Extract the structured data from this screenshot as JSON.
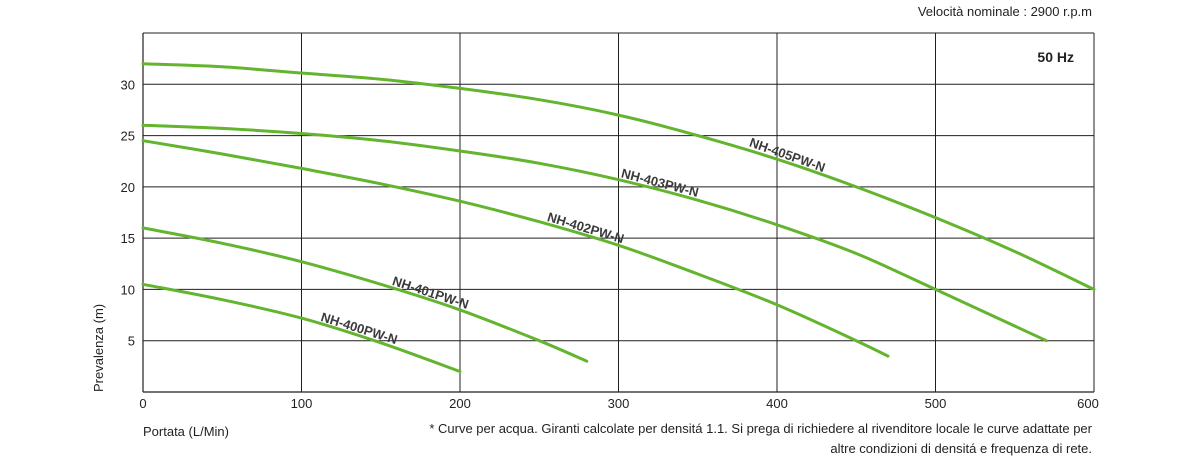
{
  "header": {
    "speed": "Velocità nominale : 2900 r.p.m",
    "frequency": "50 Hz"
  },
  "footnote": {
    "line1": "* Curve per acqua. Giranti calcolate per densitá 1.1. Si prega di richiedere al rivenditore locale le curve adattate per",
    "line2": "altre condizioni di densitá e frequenza di rete."
  },
  "chart_data": {
    "type": "line",
    "title": "",
    "xlabel": "Portata (L/Min)",
    "ylabel": "Prevalenza (m)",
    "xlim": [
      0,
      600
    ],
    "ylim": [
      0,
      35
    ],
    "xticks": [
      0,
      100,
      200,
      300,
      400,
      500,
      600
    ],
    "yticks": [
      5,
      10,
      15,
      20,
      25,
      30
    ],
    "grid": true,
    "line_color": "#63b42e",
    "series": [
      {
        "name": "NH-400PW-N",
        "x": [
          0,
          50,
          100,
          150,
          200
        ],
        "y": [
          10.5,
          9.0,
          7.2,
          4.8,
          2.0
        ]
      },
      {
        "name": "NH-401PW-N",
        "x": [
          0,
          50,
          100,
          150,
          200,
          250,
          280
        ],
        "y": [
          16.0,
          14.5,
          12.7,
          10.5,
          8.0,
          5.0,
          3.0
        ]
      },
      {
        "name": "NH-402PW-N",
        "x": [
          0,
          50,
          100,
          150,
          200,
          250,
          300,
          350,
          400,
          450,
          470
        ],
        "y": [
          24.5,
          23.2,
          21.8,
          20.3,
          18.6,
          16.6,
          14.3,
          11.5,
          8.5,
          5.0,
          3.5
        ]
      },
      {
        "name": "NH-403PW-N",
        "x": [
          0,
          50,
          100,
          150,
          200,
          250,
          300,
          350,
          400,
          450,
          500,
          570
        ],
        "y": [
          26.0,
          25.7,
          25.2,
          24.5,
          23.5,
          22.3,
          20.7,
          18.7,
          16.3,
          13.5,
          10.0,
          5.0
        ]
      },
      {
        "name": "NH-405PW-N",
        "x": [
          0,
          50,
          100,
          150,
          200,
          250,
          300,
          350,
          400,
          450,
          500,
          550,
          600
        ],
        "y": [
          32.0,
          31.7,
          31.1,
          30.5,
          29.6,
          28.5,
          27.0,
          25.0,
          22.7,
          20.0,
          17.0,
          13.7,
          10.0
        ]
      }
    ]
  }
}
